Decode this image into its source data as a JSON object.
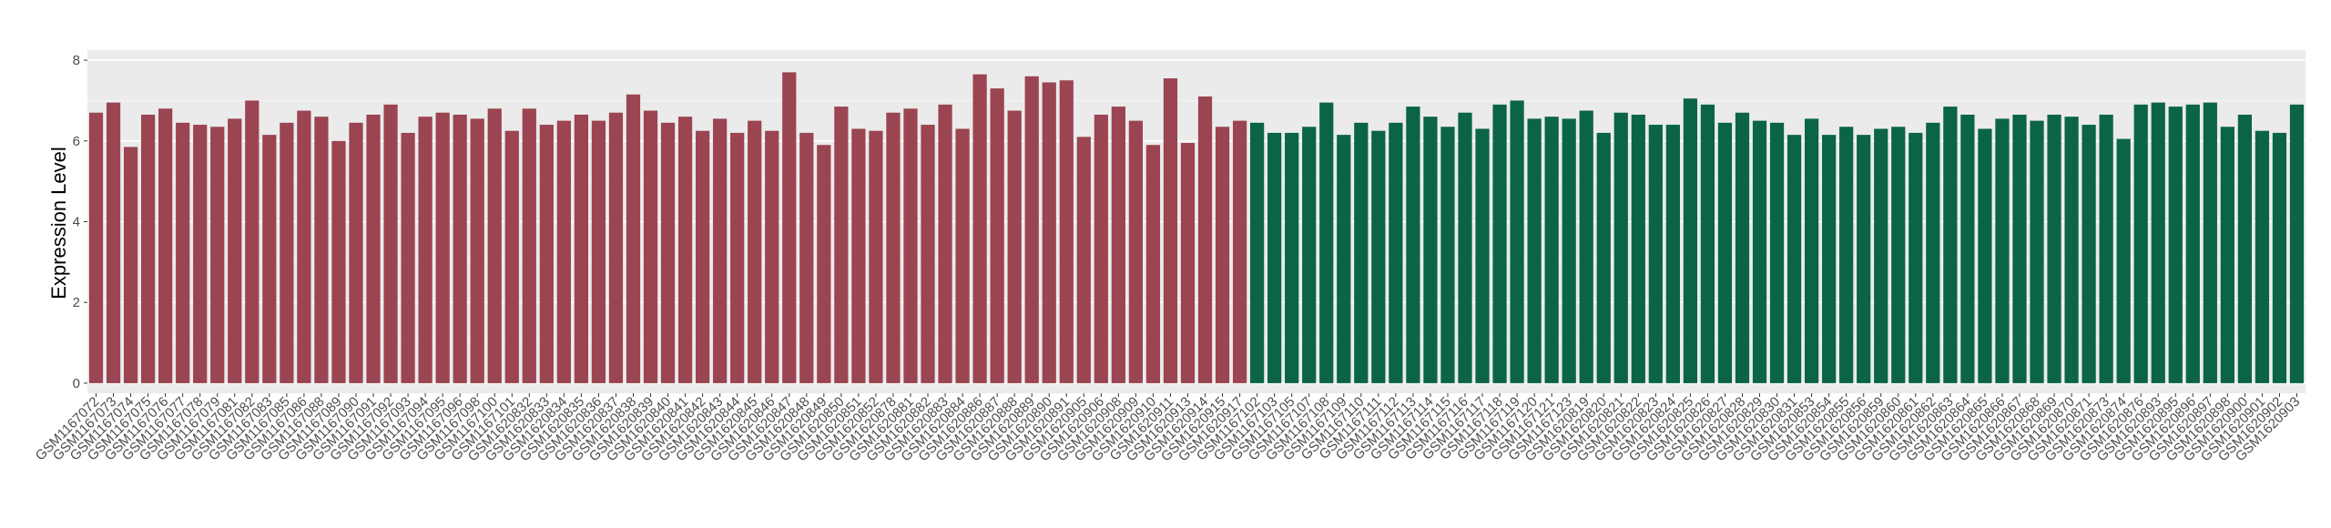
{
  "chart_data": {
    "type": "bar",
    "y_label": "Expression Level",
    "categories": [
      "GSM1167072",
      "GSM1167073",
      "GSM1167074",
      "GSM1167075",
      "GSM1167076",
      "GSM1167077",
      "GSM1167078",
      "GSM1167079",
      "GSM1167081",
      "GSM1167082",
      "GSM1167083",
      "GSM1167085",
      "GSM1167086",
      "GSM1167088",
      "GSM1167089",
      "GSM1167090",
      "GSM1167091",
      "GSM1167092",
      "GSM1167093",
      "GSM1167094",
      "GSM1167095",
      "GSM1167096",
      "GSM1167098",
      "GSM1167100",
      "GSM1167101",
      "GSM1620832",
      "GSM1620833",
      "GSM1620834",
      "GSM1620835",
      "GSM1620836",
      "GSM1620837",
      "GSM1620838",
      "GSM1620839",
      "GSM1620840",
      "GSM1620841",
      "GSM1620842",
      "GSM1620843",
      "GSM1620844",
      "GSM1620845",
      "GSM1620846",
      "GSM1620847",
      "GSM1620848",
      "GSM1620849",
      "GSM1620850",
      "GSM1620851",
      "GSM1620852",
      "GSM1620878",
      "GSM1620881",
      "GSM1620882",
      "GSM1620883",
      "GSM1620884",
      "GSM1620886",
      "GSM1620887",
      "GSM1620888",
      "GSM1620889",
      "GSM1620890",
      "GSM1620891",
      "GSM1620905",
      "GSM1620906",
      "GSM1620908",
      "GSM1620909",
      "GSM1620910",
      "GSM1620911",
      "GSM1620913",
      "GSM1620914",
      "GSM1620915",
      "GSM1620917",
      "GSM1167102",
      "GSM1167103",
      "GSM1167105",
      "GSM1167107",
      "GSM1167108",
      "GSM1167109",
      "GSM1167110",
      "GSM1167111",
      "GSM1167112",
      "GSM1167113",
      "GSM1167114",
      "GSM1167115",
      "GSM1167116",
      "GSM1167117",
      "GSM1167118",
      "GSM1167119",
      "GSM1167120",
      "GSM1167121",
      "GSM1167123",
      "GSM1620819",
      "GSM1620820",
      "GSM1620821",
      "GSM1620822",
      "GSM1620823",
      "GSM1620824",
      "GSM1620825",
      "GSM1620826",
      "GSM1620827",
      "GSM1620828",
      "GSM1620829",
      "GSM1620830",
      "GSM1620831",
      "GSM1620853",
      "GSM1620854",
      "GSM1620855",
      "GSM1620856",
      "GSM1620859",
      "GSM1620860",
      "GSM1620861",
      "GSM1620862",
      "GSM1620863",
      "GSM1620864",
      "GSM1620865",
      "GSM1620866",
      "GSM1620867",
      "GSM1620868",
      "GSM1620869",
      "GSM1620870",
      "GSM1620871",
      "GSM1620873",
      "GSM1620874",
      "GSM1620876",
      "GSM1620893",
      "GSM1620895",
      "GSM1620896",
      "GSM1620897",
      "GSM1620898",
      "GSM1620900",
      "GSM1620901",
      "GSM1620902",
      "GSM1620903"
    ],
    "values": [
      6.7,
      6.95,
      5.85,
      6.65,
      6.8,
      6.45,
      6.4,
      6.35,
      6.55,
      7.0,
      6.15,
      6.45,
      6.75,
      6.6,
      6.0,
      6.45,
      6.65,
      6.9,
      6.2,
      6.6,
      6.7,
      6.65,
      6.55,
      6.8,
      6.25,
      6.8,
      6.4,
      6.5,
      6.65,
      6.5,
      6.7,
      7.15,
      6.75,
      6.45,
      6.6,
      6.25,
      6.55,
      6.2,
      6.5,
      6.25,
      7.7,
      6.2,
      5.9,
      6.85,
      6.3,
      6.25,
      6.7,
      6.8,
      6.4,
      6.9,
      6.3,
      7.65,
      7.3,
      6.75,
      7.6,
      7.45,
      7.5,
      6.1,
      6.65,
      6.85,
      6.5,
      5.9,
      7.55,
      5.95,
      7.1,
      6.35,
      6.5,
      6.45,
      6.2,
      6.2,
      6.35,
      6.95,
      6.15,
      6.45,
      6.25,
      6.45,
      6.85,
      6.6,
      6.35,
      6.7,
      6.3,
      6.9,
      7.0,
      6.55,
      6.6,
      6.55,
      6.75,
      6.2,
      6.7,
      6.65,
      6.4,
      6.4,
      7.05,
      6.9,
      6.45,
      6.7,
      6.5,
      6.45,
      6.15,
      6.55,
      6.15,
      6.35,
      6.15,
      6.3,
      6.35,
      6.2,
      6.45,
      6.85,
      6.65,
      6.3,
      6.55,
      6.65,
      6.5,
      6.65,
      6.6,
      6.4,
      6.65,
      6.05,
      6.9,
      6.95,
      6.85,
      6.9,
      6.95,
      6.35,
      6.65,
      6.25,
      6.2,
      6.9
    ],
    "colors": [
      "#9b4452",
      "#9b4452",
      "#9b4452",
      "#9b4452",
      "#9b4452",
      "#9b4452",
      "#9b4452",
      "#9b4452",
      "#9b4452",
      "#9b4452",
      "#9b4452",
      "#9b4452",
      "#9b4452",
      "#9b4452",
      "#9b4452",
      "#9b4452",
      "#9b4452",
      "#9b4452",
      "#9b4452",
      "#9b4452",
      "#9b4452",
      "#9b4452",
      "#9b4452",
      "#9b4452",
      "#9b4452",
      "#9b4452",
      "#9b4452",
      "#9b4452",
      "#9b4452",
      "#9b4452",
      "#9b4452",
      "#9b4452",
      "#9b4452",
      "#9b4452",
      "#9b4452",
      "#9b4452",
      "#9b4452",
      "#9b4452",
      "#9b4452",
      "#9b4452",
      "#9b4452",
      "#9b4452",
      "#9b4452",
      "#9b4452",
      "#9b4452",
      "#9b4452",
      "#9b4452",
      "#9b4452",
      "#9b4452",
      "#9b4452",
      "#9b4452",
      "#9b4452",
      "#9b4452",
      "#9b4452",
      "#9b4452",
      "#9b4452",
      "#9b4452",
      "#9b4452",
      "#9b4452",
      "#9b4452",
      "#9b4452",
      "#9b4452",
      "#9b4452",
      "#9b4452",
      "#9b4452",
      "#9b4452",
      "#9b4452",
      "#0b6545",
      "#0b6545",
      "#0b6545",
      "#0b6545",
      "#0b6545",
      "#0b6545",
      "#0b6545",
      "#0b6545",
      "#0b6545",
      "#0b6545",
      "#0b6545",
      "#0b6545",
      "#0b6545",
      "#0b6545",
      "#0b6545",
      "#0b6545",
      "#0b6545",
      "#0b6545",
      "#0b6545",
      "#0b6545",
      "#0b6545",
      "#0b6545",
      "#0b6545",
      "#0b6545",
      "#0b6545",
      "#0b6545",
      "#0b6545",
      "#0b6545",
      "#0b6545",
      "#0b6545",
      "#0b6545",
      "#0b6545",
      "#0b6545",
      "#0b6545",
      "#0b6545",
      "#0b6545",
      "#0b6545",
      "#0b6545",
      "#0b6545",
      "#0b6545",
      "#0b6545",
      "#0b6545",
      "#0b6545",
      "#0b6545",
      "#0b6545",
      "#0b6545",
      "#0b6545",
      "#0b6545",
      "#0b6545",
      "#0b6545",
      "#0b6545",
      "#0b6545",
      "#0b6545",
      "#0b6545",
      "#0b6545",
      "#0b6545",
      "#0b6545",
      "#0b6545",
      "#0b6545",
      "#0b6545",
      "#0b6545"
    ],
    "ylim": [
      -0.25,
      8.25
    ],
    "yticks": [
      0,
      2,
      4,
      6,
      8
    ],
    "grid": true
  }
}
